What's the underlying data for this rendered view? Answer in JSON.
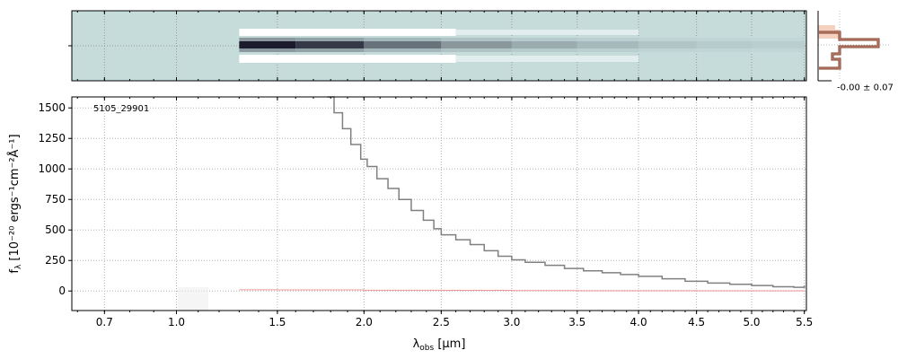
{
  "chart_data": [
    {
      "type": "heatmap",
      "panel": "2d-spectrum",
      "description_visible": false,
      "colormap": [
        "#ffffff",
        "#c5dcdb",
        "#9bbcbb",
        "#1b1b2d"
      ],
      "background_color": "#c5dcdb",
      "x": [
        1.3,
        1.6,
        2.0,
        2.5,
        3.0,
        3.5,
        4.0,
        4.5,
        5.0,
        5.5
      ],
      "trace_intensity": [
        1.0,
        0.85,
        0.55,
        0.35,
        0.25,
        0.18,
        0.12,
        0.09,
        0.07,
        0.06
      ],
      "grid": true
    },
    {
      "type": "line",
      "panel": "1d-spectrum",
      "annotation": "5105_29901",
      "xlabel_prefix": "λ",
      "xlabel_sub": "obs",
      "xlabel_suffix": " [μm]",
      "ylabel_prefix": "f",
      "ylabel_sub": "λ",
      "ylabel_suffix": " [10⁻²⁰ ergs⁻¹cm⁻²Å⁻¹]",
      "x_ticks": [
        0.7,
        1.0,
        1.5,
        2.0,
        2.5,
        3.0,
        3.5,
        4.0,
        4.5,
        5.0,
        5.5
      ],
      "x_tick_labels": [
        "0.7",
        "1.0",
        "1.5",
        "2.0",
        "2.5",
        "3.0",
        "3.5",
        "4.0",
        "4.5",
        "5.0",
        "5.5"
      ],
      "y_ticks": [
        0,
        250,
        500,
        750,
        1000,
        1250,
        1500
      ],
      "y_tick_labels": [
        "0",
        "250",
        "500",
        "750",
        "1000",
        "1250",
        "1500"
      ],
      "xlim": [
        0.58,
        5.52
      ],
      "ylim": [
        -160,
        1590
      ],
      "grid": true,
      "series": [
        {
          "color": "#808080",
          "x": [
            1.78,
            1.82,
            1.87,
            1.92,
            1.98,
            2.02,
            2.08,
            2.15,
            2.22,
            2.3,
            2.38,
            2.45,
            2.5,
            2.6,
            2.7,
            2.8,
            2.9,
            3.0,
            3.1,
            3.25,
            3.4,
            3.55,
            3.7,
            3.85,
            4.0,
            4.2,
            4.4,
            4.6,
            4.8,
            5.0,
            5.2,
            5.4,
            5.5
          ],
          "y": [
            1590,
            1460,
            1330,
            1200,
            1080,
            1020,
            920,
            840,
            750,
            660,
            580,
            510,
            460,
            420,
            380,
            330,
            285,
            255,
            235,
            210,
            185,
            165,
            150,
            135,
            120,
            100,
            80,
            65,
            55,
            45,
            35,
            30,
            45
          ]
        },
        {
          "color": "#f08080",
          "x": [
            1.3,
            1.5,
            2.0,
            2.5,
            3.0,
            3.5,
            4.0,
            4.5,
            5.0,
            5.5
          ],
          "y": [
            10,
            9,
            6,
            5,
            4,
            3,
            3,
            2,
            2,
            2
          ]
        }
      ]
    },
    {
      "type": "line",
      "panel": "profile",
      "label": "-0.00 ± 0.07",
      "colors": [
        "#f4c6b0",
        "#7a3b2a"
      ]
    }
  ]
}
